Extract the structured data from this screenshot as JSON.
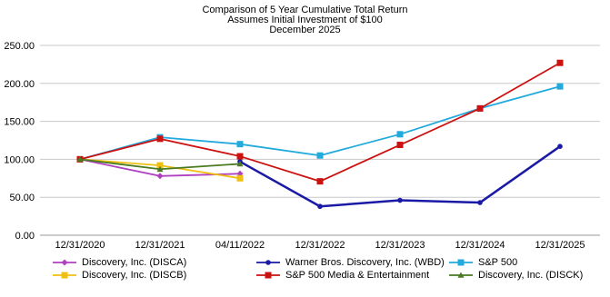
{
  "chart_data": {
    "type": "line",
    "title": "Comparison of 5 Year Cumulative Total Return",
    "subtitle": "Assumes Initial Investment of $100",
    "subtitle2": "December 2025",
    "xlabel": "",
    "ylabel": "",
    "ylim": [
      0,
      250
    ],
    "yticks": [
      "0.00",
      "50.00",
      "100.00",
      "150.00",
      "200.00",
      "250.00"
    ],
    "categories": [
      "12/31/2020",
      "12/31/2021",
      "04/11/2022",
      "12/31/2022",
      "12/31/2023",
      "12/31/2024",
      "12/31/2025"
    ],
    "grid": true,
    "legend_placement": "bottom",
    "series": [
      {
        "name": "Discovery, Inc. (DISCA)",
        "color": "#b040c0",
        "marker": "diamond",
        "values": [
          100,
          78,
          81,
          null,
          null,
          null,
          null
        ]
      },
      {
        "name": "Warner Bros. Discovery, Inc. (WBD)",
        "color": "#1a1aa6",
        "marker": "circle",
        "values": [
          null,
          null,
          97,
          38,
          46,
          43,
          117
        ]
      },
      {
        "name": "S&P 500",
        "color": "#22aadd",
        "marker": "square",
        "values": [
          100,
          129,
          120,
          105,
          133,
          167,
          196
        ]
      },
      {
        "name": "Discovery, Inc. (DISCB)",
        "color": "#f0c010",
        "marker": "square",
        "values": [
          100,
          92,
          75,
          null,
          null,
          null,
          null
        ]
      },
      {
        "name": "S&P 500 Media & Entertainment",
        "color": "#cc1111",
        "marker": "square",
        "values": [
          100,
          127,
          104,
          71,
          119,
          167,
          227
        ]
      },
      {
        "name": "Discovery, Inc. (DISCK)",
        "color": "#4a7a22",
        "marker": "triangle",
        "values": [
          100,
          87,
          94,
          null,
          null,
          null,
          null
        ]
      }
    ]
  }
}
